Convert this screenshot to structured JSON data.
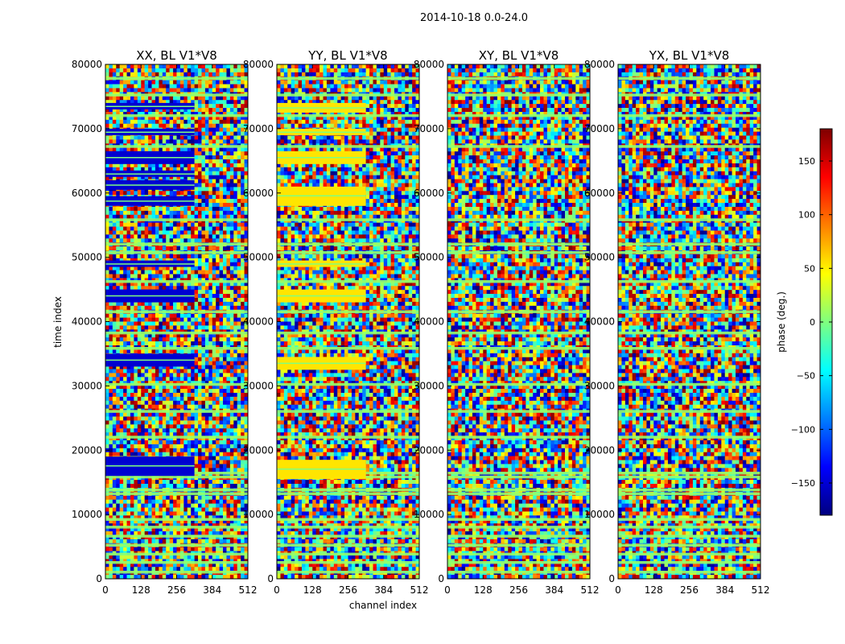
{
  "figure_title": "2014-10-18 0.0-24.0",
  "x_axis_label": "channel index",
  "y_axis_label": "time index",
  "colorbar": {
    "label": "phase (deg.)",
    "range": [
      -180,
      180
    ],
    "ticks": [
      150,
      100,
      50,
      0,
      -50,
      -100,
      -150
    ],
    "tick_labels": [
      "150",
      "100",
      "50",
      "0",
      "−50",
      "−100",
      "−150"
    ],
    "colormap": "jet",
    "stops": [
      "#00007f",
      "#0000ff",
      "#007fff",
      "#00ffff",
      "#7fff7f",
      "#ffff00",
      "#ff7f00",
      "#ff0000",
      "#7f0000"
    ]
  },
  "chart_data": [
    {
      "type": "heatmap",
      "title": "XX, BL V1*V8",
      "xlabel": "channel index",
      "ylabel": "time index",
      "xlim": [
        0,
        512
      ],
      "ylim": [
        0,
        80000
      ],
      "x_ticks": [
        0,
        128,
        256,
        384,
        512
      ],
      "y_ticks": [
        0,
        10000,
        20000,
        30000,
        40000,
        50000,
        60000,
        70000,
        80000
      ],
      "value": "phase (deg.)",
      "notes": "noisy phase; strong blue (~-150 deg) bands at time ~16000-19000, 33000-35000, 43000-45000, 48500-49500, 58000-74000 for channels 0-320"
    },
    {
      "type": "heatmap",
      "title": "YY, BL V1*V8",
      "xlabel": "channel index",
      "ylabel": "time index",
      "xlim": [
        0,
        512
      ],
      "ylim": [
        0,
        80000
      ],
      "x_ticks": [
        0,
        128,
        256,
        384,
        512
      ],
      "y_ticks": [
        0,
        10000,
        20000,
        30000,
        40000,
        50000,
        60000,
        70000,
        80000
      ],
      "value": "phase (deg.)",
      "notes": "noisy phase; orange/yellow (~+50 deg) bands at time ~15500-18500, 32500-34500, 43000-45000, 48500-49500, 58000-74000 for channels 0-320"
    },
    {
      "type": "heatmap",
      "title": "XY, BL V1*V8",
      "xlabel": "channel index",
      "ylabel": "time index",
      "xlim": [
        0,
        512
      ],
      "ylim": [
        0,
        80000
      ],
      "x_ticks": [
        0,
        128,
        256,
        384,
        512
      ],
      "y_ticks": [
        0,
        10000,
        20000,
        30000,
        40000,
        50000,
        60000,
        70000,
        80000
      ],
      "value": "phase (deg.)",
      "notes": "mostly random phase with green (~0 deg) flagged horizontal stripes"
    },
    {
      "type": "heatmap",
      "title": "YX, BL V1*V8",
      "xlabel": "channel index",
      "ylabel": "time index",
      "xlim": [
        0,
        512
      ],
      "ylim": [
        0,
        80000
      ],
      "x_ticks": [
        0,
        128,
        256,
        384,
        512
      ],
      "y_ticks": [
        0,
        10000,
        20000,
        30000,
        40000,
        50000,
        60000,
        70000,
        80000
      ],
      "value": "phase (deg.)",
      "notes": "mostly random phase with green (~0 deg) flagged horizontal stripes"
    }
  ]
}
